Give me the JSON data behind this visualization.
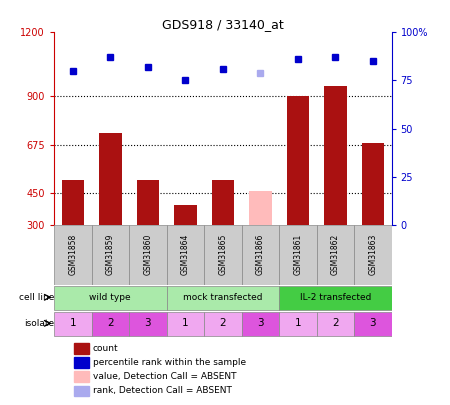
{
  "title": "GDS918 / 33140_at",
  "samples": [
    "GSM31858",
    "GSM31859",
    "GSM31860",
    "GSM31864",
    "GSM31865",
    "GSM31866",
    "GSM31861",
    "GSM31862",
    "GSM31863"
  ],
  "counts": [
    510,
    730,
    510,
    390,
    510,
    460,
    900,
    950,
    680
  ],
  "ranks_pct": [
    80.0,
    87.0,
    82.0,
    75.5,
    81.0,
    79.0,
    86.0,
    87.0,
    85.0
  ],
  "absent_idx": [
    5
  ],
  "ylim_left": [
    300,
    1200
  ],
  "ylim_right": [
    0,
    100
  ],
  "yticks_left": [
    300,
    450,
    675,
    900,
    1200
  ],
  "yticks_right": [
    0,
    25,
    50,
    75,
    100
  ],
  "cell_line_labels": [
    "wild type",
    "mock transfected",
    "IL-2 transfected"
  ],
  "cell_line_spans": [
    [
      0,
      3
    ],
    [
      3,
      6
    ],
    [
      6,
      9
    ]
  ],
  "cell_line_colors": [
    "#aaeaaa",
    "#aaeaaa",
    "#44cc44"
  ],
  "isolate_labels": [
    "1",
    "2",
    "3",
    "1",
    "2",
    "3",
    "1",
    "2",
    "3"
  ],
  "isolate_colors": [
    "#f0a8f0",
    "#dd55dd",
    "#dd55dd",
    "#f0a8f0",
    "#f0a8f0",
    "#dd55dd",
    "#f0a8f0",
    "#f0a8f0",
    "#dd55dd"
  ],
  "bar_color": "#aa1111",
  "absent_bar_color": "#ffbbbb",
  "rank_color": "#0000cc",
  "absent_rank_color": "#aaaaee",
  "bg_color": "#ffffff",
  "left_axis_color": "#cc0000",
  "right_axis_color": "#0000cc",
  "sample_box_color": "#cccccc",
  "legend_items": [
    [
      "#aa1111",
      "count"
    ],
    [
      "#0000cc",
      "percentile rank within the sample"
    ],
    [
      "#ffbbbb",
      "value, Detection Call = ABSENT"
    ],
    [
      "#aaaaee",
      "rank, Detection Call = ABSENT"
    ]
  ]
}
